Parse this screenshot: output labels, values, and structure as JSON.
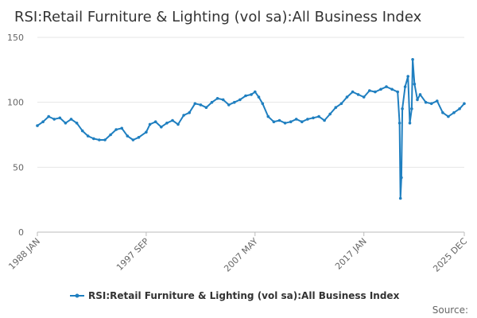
{
  "chart_data": {
    "type": "line",
    "title": "RSI:Retail Furniture & Lighting (vol sa):All Business Index",
    "x_start": "1988 JAN",
    "x_end": "2025 DEC",
    "x_ticks": [
      "1988 JAN",
      "1997 SEP",
      "2007 MAY",
      "2017 JAN",
      "2025 DEC"
    ],
    "y_ticks": [
      "0",
      "50",
      "100",
      "150"
    ],
    "ylim": [
      0,
      150
    ],
    "grid": "horizontal",
    "legend_position": "bottom",
    "series": [
      {
        "name": "RSI:Retail Furniture & Lighting (vol sa):All Business Index",
        "color": "#1f7fc0",
        "points": [
          [
            "1988 JAN",
            82
          ],
          [
            "1988 JUL",
            85
          ],
          [
            "1989 JAN",
            89
          ],
          [
            "1989 JUL",
            87
          ],
          [
            "1990 JAN",
            88
          ],
          [
            "1990 JUL",
            84
          ],
          [
            "1991 JAN",
            87
          ],
          [
            "1991 JUL",
            84
          ],
          [
            "1992 JAN",
            78
          ],
          [
            "1992 JUL",
            74
          ],
          [
            "1993 JAN",
            72
          ],
          [
            "1993 JUL",
            71
          ],
          [
            "1994 JAN",
            71
          ],
          [
            "1994 JUL",
            75
          ],
          [
            "1995 JAN",
            79
          ],
          [
            "1995 JUL",
            80
          ],
          [
            "1996 JAN",
            74
          ],
          [
            "1996 JUL",
            71
          ],
          [
            "1997 JAN",
            73
          ],
          [
            "1997 SEP",
            77
          ],
          [
            "1998 JAN",
            83
          ],
          [
            "1998 JUL",
            85
          ],
          [
            "1999 JAN",
            81
          ],
          [
            "1999 JUL",
            84
          ],
          [
            "2000 JAN",
            86
          ],
          [
            "2000 JUL",
            83
          ],
          [
            "2001 JAN",
            90
          ],
          [
            "2001 JUL",
            92
          ],
          [
            "2002 JAN",
            99
          ],
          [
            "2002 JUL",
            98
          ],
          [
            "2003 JAN",
            96
          ],
          [
            "2003 JUL",
            100
          ],
          [
            "2004 JAN",
            103
          ],
          [
            "2004 JUL",
            102
          ],
          [
            "2005 JAN",
            98
          ],
          [
            "2005 JUL",
            100
          ],
          [
            "2006 JAN",
            102
          ],
          [
            "2006 JUL",
            105
          ],
          [
            "2007 JAN",
            106
          ],
          [
            "2007 MAY",
            108
          ],
          [
            "2007 SEP",
            104
          ],
          [
            "2008 JAN",
            99
          ],
          [
            "2008 JUL",
            89
          ],
          [
            "2009 JAN",
            85
          ],
          [
            "2009 JUL",
            86
          ],
          [
            "2010 JAN",
            84
          ],
          [
            "2010 JUL",
            85
          ],
          [
            "2011 JAN",
            87
          ],
          [
            "2011 JUL",
            85
          ],
          [
            "2012 JAN",
            87
          ],
          [
            "2012 JUL",
            88
          ],
          [
            "2013 JAN",
            89
          ],
          [
            "2013 JUL",
            86
          ],
          [
            "2014 JAN",
            91
          ],
          [
            "2014 JUL",
            96
          ],
          [
            "2015 JAN",
            99
          ],
          [
            "2015 JUL",
            104
          ],
          [
            "2016 JAN",
            108
          ],
          [
            "2016 JUL",
            106
          ],
          [
            "2017 JAN",
            104
          ],
          [
            "2017 JUL",
            109
          ],
          [
            "2018 JAN",
            108
          ],
          [
            "2018 JUL",
            110
          ],
          [
            "2019 JAN",
            112
          ],
          [
            "2019 JUL",
            110
          ],
          [
            "2020 JAN",
            108
          ],
          [
            "2020 MAR",
            84
          ],
          [
            "2020 APR",
            26
          ],
          [
            "2020 MAY",
            42
          ],
          [
            "2020 JUN",
            95
          ],
          [
            "2020 SEP",
            112
          ],
          [
            "2020 DEC",
            120
          ],
          [
            "2021 FEB",
            84
          ],
          [
            "2021 APR",
            95
          ],
          [
            "2021 MAY",
            133
          ],
          [
            "2021 JUL",
            114
          ],
          [
            "2021 OCT",
            102
          ],
          [
            "2022 JAN",
            106
          ],
          [
            "2022 JUL",
            100
          ],
          [
            "2023 JAN",
            99
          ],
          [
            "2023 JUL",
            101
          ],
          [
            "2024 JAN",
            92
          ],
          [
            "2024 JUL",
            89
          ],
          [
            "2025 JAN",
            92
          ],
          [
            "2025 JUL",
            95
          ],
          [
            "2025 DEC",
            99
          ]
        ]
      }
    ]
  },
  "footer": {
    "source_label": "Source:"
  }
}
